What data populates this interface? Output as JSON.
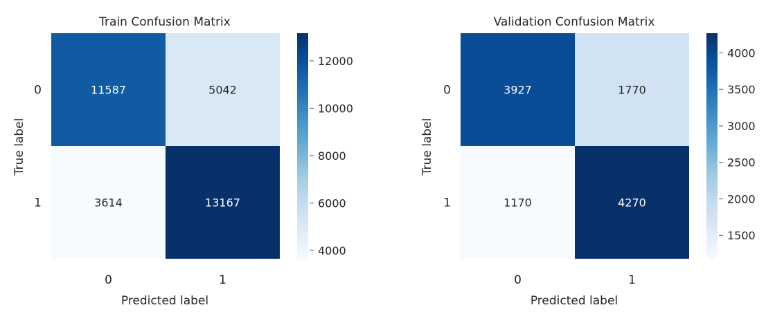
{
  "chart_data": [
    {
      "type": "heatmap",
      "title": "Train Confusion Matrix",
      "xlabel": "Predicted label",
      "ylabel": "True label",
      "x_categories": [
        "0",
        "1"
      ],
      "y_categories": [
        "0",
        "1"
      ],
      "values": [
        [
          11587,
          5042
        ],
        [
          3614,
          13167
        ]
      ],
      "colormap": "Blues",
      "colorbar": {
        "range": [
          3614,
          13167
        ],
        "ticks": [
          4000,
          6000,
          8000,
          10000,
          12000
        ]
      }
    },
    {
      "type": "heatmap",
      "title": "Validation Confusion Matrix",
      "xlabel": "Predicted label",
      "ylabel": "True label",
      "x_categories": [
        "0",
        "1"
      ],
      "y_categories": [
        "0",
        "1"
      ],
      "values": [
        [
          3927,
          1770
        ],
        [
          1170,
          4270
        ]
      ],
      "colormap": "Blues",
      "colorbar": {
        "range": [
          1170,
          4270
        ],
        "ticks": [
          1500,
          2000,
          2500,
          3000,
          3500,
          4000
        ]
      }
    }
  ]
}
